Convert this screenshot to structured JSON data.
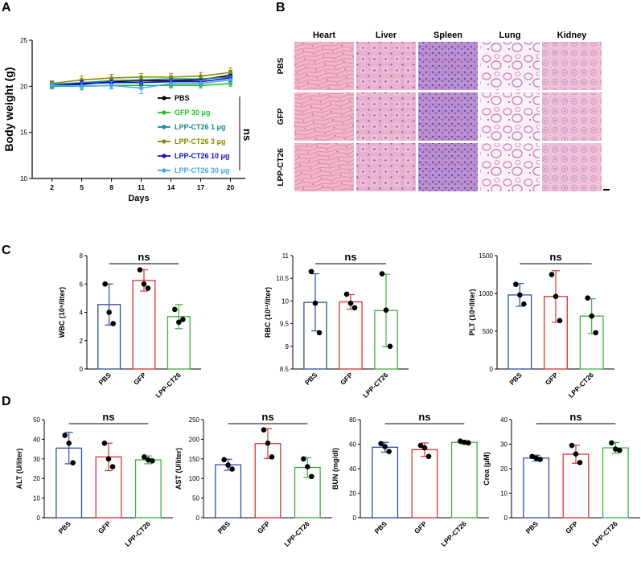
{
  "panels": {
    "a": "A",
    "b": "B",
    "c": "C",
    "d": "D"
  },
  "colors": {
    "PBS": "#000000",
    "GFP 30 μg": "#1cc71c",
    "LPP-CT26 1 μg": "#1a8a8a",
    "LPP-CT26 3 μg": "#8a8a00",
    "LPP-CT26 10 μg": "#1010d0",
    "LPP-CT26 30 μg": "#4aa6ee"
  },
  "bar_colors": [
    "#2a4fa8",
    "#e03030",
    "#3cb33c"
  ],
  "histology": {
    "columns": [
      "Heart",
      "Liver",
      "Spleen",
      "Lung",
      "Kidney"
    ],
    "rows": [
      "PBS",
      "GFP",
      "LPP-CT26"
    ]
  },
  "chart_data": [
    {
      "type": "line",
      "panel": "A",
      "title": "",
      "xlabel": "Days",
      "ylabel": "Body weight (g)",
      "x": [
        2,
        5,
        8,
        11,
        14,
        17,
        20
      ],
      "xlim": [
        0,
        21.5
      ],
      "ylim": [
        10,
        25
      ],
      "yticks": [
        10,
        15,
        20,
        25
      ],
      "legend_position": "right",
      "significance": "ns",
      "series": [
        {
          "name": "PBS",
          "values": [
            20.2,
            20.2,
            20.5,
            20.6,
            20.6,
            20.7,
            21.2
          ],
          "error": [
            0.3,
            0.3,
            0.4,
            0.4,
            0.4,
            0.4,
            0.5
          ]
        },
        {
          "name": "GFP 30 μg",
          "values": [
            20.0,
            20.0,
            20.1,
            20.1,
            20.1,
            20.1,
            20.3
          ],
          "error": [
            0.3,
            0.3,
            0.3,
            0.3,
            0.3,
            0.3,
            0.3
          ]
        },
        {
          "name": "LPP-CT26 1 μg",
          "values": [
            20.2,
            20.4,
            20.6,
            20.7,
            20.8,
            20.8,
            21.0
          ],
          "error": [
            0.3,
            0.3,
            0.3,
            0.3,
            0.3,
            0.3,
            0.4
          ]
        },
        {
          "name": "LPP-CT26 3 μg",
          "values": [
            20.3,
            20.7,
            20.9,
            21.0,
            21.0,
            21.1,
            21.5
          ],
          "error": [
            0.3,
            0.4,
            0.4,
            0.4,
            0.4,
            0.4,
            0.5
          ]
        },
        {
          "name": "LPP-CT26 10 μg",
          "values": [
            20.1,
            20.3,
            20.4,
            20.4,
            20.5,
            20.5,
            20.9
          ],
          "error": [
            0.3,
            0.3,
            0.3,
            0.3,
            0.3,
            0.3,
            0.4
          ]
        },
        {
          "name": "LPP-CT26 30 μg",
          "values": [
            20.1,
            20.0,
            20.1,
            19.8,
            20.3,
            20.3,
            20.7
          ],
          "error": [
            0.3,
            0.4,
            0.4,
            0.6,
            0.4,
            0.3,
            0.4
          ]
        }
      ]
    },
    {
      "type": "bar",
      "panel": "C",
      "categories": [
        "PBS",
        "GFP",
        "LPP-CT26"
      ],
      "ylabel": "WBC (10⁹/liter)",
      "ylim": [
        0,
        8
      ],
      "yticks": [
        0,
        2,
        4,
        6,
        8
      ],
      "values": [
        4.55,
        6.25,
        3.7
      ],
      "errors": [
        1.45,
        0.75,
        0.85
      ],
      "points": [
        [
          6.0,
          4.0,
          3.2
        ],
        [
          7.0,
          6.0,
          5.7
        ],
        [
          4.2,
          3.3,
          3.5
        ]
      ],
      "significance": "ns"
    },
    {
      "type": "bar",
      "panel": "C",
      "categories": [
        "PBS",
        "GFP",
        "LPP-CT26"
      ],
      "ylabel": "RBC (10¹²/liter)",
      "ylim": [
        8.5,
        11.0
      ],
      "yticks": [
        8.5,
        9.0,
        9.5,
        10.0,
        10.5,
        11.0
      ],
      "values": [
        9.97,
        9.98,
        9.79
      ],
      "errors": [
        0.63,
        0.16,
        0.8
      ],
      "points": [
        [
          10.65,
          9.95,
          9.3
        ],
        [
          10.15,
          9.95,
          9.85
        ],
        [
          10.6,
          9.8,
          9.0
        ]
      ],
      "significance": "ns"
    },
    {
      "type": "bar",
      "panel": "C",
      "categories": [
        "PBS",
        "GFP",
        "LPP-CT26"
      ],
      "ylabel": "PLT (10⁹/liter)",
      "ylim": [
        0,
        1500
      ],
      "yticks": [
        0,
        500,
        1000,
        1500
      ],
      "values": [
        980,
        960,
        700
      ],
      "errors": [
        150,
        340,
        230
      ],
      "points": [
        [
          1120,
          980,
          860
        ],
        [
          1250,
          960,
          640
        ],
        [
          940,
          700,
          480
        ]
      ],
      "significance": "ns"
    },
    {
      "type": "bar",
      "panel": "D",
      "categories": [
        "PBS",
        "GFP",
        "LPP-CT26"
      ],
      "ylabel": "ALT (U/liter)",
      "ylim": [
        0,
        50
      ],
      "yticks": [
        0,
        10,
        20,
        30,
        40,
        50
      ],
      "values": [
        35.5,
        31.0,
        29.5
      ],
      "errors": [
        8.0,
        7.0,
        2.0
      ],
      "points": [
        [
          42,
          38,
          28
        ],
        [
          38,
          30,
          26
        ],
        [
          31,
          29.5,
          29
        ]
      ],
      "significance": "ns"
    },
    {
      "type": "bar",
      "panel": "D",
      "categories": [
        "PBS",
        "GFP",
        "LPP-CT26"
      ],
      "ylabel": "AST (U/liter)",
      "ylim": [
        0,
        250
      ],
      "yticks": [
        0,
        50,
        100,
        150,
        200,
        250
      ],
      "values": [
        135,
        189,
        128
      ],
      "errors": [
        14,
        38,
        25
      ],
      "points": [
        [
          148,
          134,
          124
        ],
        [
          224,
          190,
          155
        ],
        [
          150,
          130,
          105
        ]
      ],
      "significance": "ns"
    },
    {
      "type": "bar",
      "panel": "D",
      "categories": [
        "PBS",
        "GFP",
        "LPP-CT26"
      ],
      "ylabel": "BUN (mg/dl)",
      "ylim": [
        0,
        80
      ],
      "yticks": [
        0,
        20,
        40,
        60,
        80
      ],
      "values": [
        57.5,
        55.5,
        61.5
      ],
      "errors": [
        4.0,
        5.5,
        1.5
      ],
      "points": [
        [
          60.5,
          58,
          54
        ],
        [
          59,
          57,
          50
        ],
        [
          62.5,
          61.5,
          61
        ]
      ],
      "significance": "ns"
    },
    {
      "type": "bar",
      "panel": "D",
      "categories": [
        "PBS",
        "GFP",
        "LPP-CT26"
      ],
      "ylabel": "Crea (μM)",
      "ylim": [
        0,
        40
      ],
      "yticks": [
        0,
        10,
        20,
        30,
        40
      ],
      "values": [
        24.3,
        25.9,
        28.5
      ],
      "errors": [
        1.2,
        3.7,
        2.2
      ],
      "points": [
        [
          25,
          24.3,
          23.8
        ],
        [
          29.5,
          26,
          22.5
        ],
        [
          30.5,
          28,
          27.5
        ]
      ],
      "significance": "ns"
    }
  ]
}
